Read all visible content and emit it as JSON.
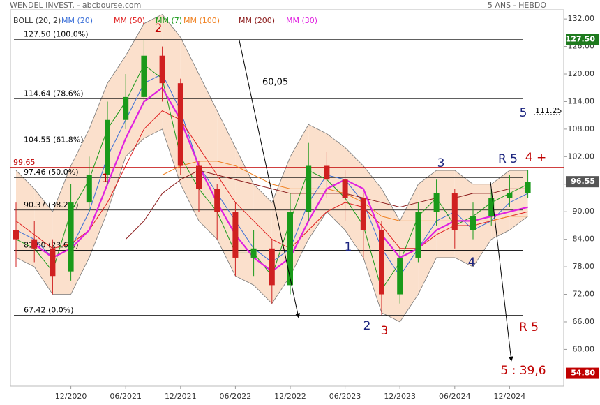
{
  "chart_data": {
    "type": "candlestick",
    "title": "WENDEL INVEST. - abcbourse.com",
    "subtitle": "5 ANS - HEBDO",
    "categories": [
      null,
      null,
      null,
      "12/2020",
      null,
      null,
      "06/2021",
      null,
      null,
      "12/2021",
      null,
      null,
      "06/2022",
      null,
      null,
      "12/2022",
      null,
      null,
      "06/2023",
      null,
      null,
      "12/2023",
      null,
      null,
      "06/2024",
      null,
      null,
      "12/2024",
      null
    ],
    "open": [
      86,
      84,
      82,
      77,
      92,
      98,
      110,
      115,
      124,
      118,
      100,
      95,
      90,
      80,
      82,
      74,
      90,
      100,
      97,
      93,
      86,
      72,
      80,
      90,
      94,
      86,
      89,
      93,
      94
    ],
    "high": [
      92,
      88,
      84,
      96,
      102,
      114,
      120,
      127.5,
      126,
      119,
      101,
      96,
      92,
      86,
      84,
      94,
      105,
      103,
      99,
      94,
      88,
      82,
      92,
      97,
      95,
      92,
      95,
      98,
      99
    ],
    "low": [
      78,
      79,
      72,
      75,
      90,
      96,
      108,
      113,
      114,
      98,
      90,
      84,
      76,
      76,
      70,
      72,
      88,
      93,
      88,
      80,
      67.5,
      70,
      79,
      87,
      82,
      84,
      87,
      91,
      93
    ],
    "close": [
      84,
      82,
      76,
      92,
      98,
      110,
      115,
      124,
      118,
      100,
      95,
      90,
      80,
      82,
      74,
      90,
      100,
      97,
      93,
      86,
      72,
      80,
      90,
      94,
      86,
      89,
      93,
      94,
      96.55
    ],
    "up_color": "#1a9a1a",
    "down_color": "#d02020",
    "bollinger": {
      "name": "BOLL (20, 2)",
      "color": "#333333",
      "fill": "#fbe0cc",
      "line": "#777777",
      "upper": [
        99,
        95,
        90,
        100,
        108,
        118,
        124,
        131,
        133,
        128,
        120,
        112,
        104,
        96,
        92,
        102,
        109,
        107,
        104,
        100,
        95,
        88,
        96,
        99,
        99,
        96,
        96,
        99,
        99
      ],
      "lower": [
        80,
        78,
        72,
        72,
        80,
        90,
        102,
        106,
        108,
        96,
        88,
        84,
        76,
        74,
        70,
        76,
        84,
        90,
        86,
        80,
        68,
        66,
        72,
        80,
        80,
        78,
        84,
        86,
        89
      ]
    },
    "series": [
      {
        "name": "MM (20)",
        "color": "#3a6fd8",
        "values": [
          86,
          84,
          80,
          82,
          90,
          102,
          110,
          118,
          120,
          112,
          100,
          94,
          88,
          82,
          79,
          82,
          92,
          98,
          97,
          92,
          82,
          76,
          82,
          88,
          90,
          86,
          88,
          92,
          94
        ]
      },
      {
        "name": "MM (50)",
        "color": "#e02020",
        "values": [
          88,
          85,
          82,
          83,
          86,
          92,
          100,
          108,
          112,
          110,
          104,
          98,
          92,
          88,
          84,
          82,
          86,
          90,
          92,
          91,
          87,
          82,
          82,
          85,
          87,
          87,
          88,
          89,
          90
        ]
      },
      {
        "name": "MM (7)",
        "color": "#1a9a1a",
        "values": [
          84,
          82,
          77,
          90,
          97,
          108,
          114,
          122,
          119,
          102,
          95,
          90,
          81,
          81,
          76,
          88,
          99,
          97,
          93,
          87,
          73,
          79,
          89,
          93,
          87,
          89,
          92,
          94,
          96
        ]
      },
      {
        "name": "MM (100)",
        "color": "#f08020",
        "values": [
          null,
          null,
          null,
          null,
          null,
          null,
          null,
          null,
          98,
          100,
          101,
          101,
          100,
          98,
          96,
          95,
          95,
          95,
          94,
          92,
          89,
          88,
          88,
          88,
          88,
          88,
          88,
          89,
          89
        ]
      },
      {
        "name": "MM (200)",
        "color": "#8b1a1a",
        "values": [
          null,
          null,
          null,
          null,
          null,
          null,
          84,
          88,
          94,
          97,
          99,
          98,
          97,
          96,
          95,
          94,
          94,
          94,
          94,
          93,
          92,
          91,
          92,
          93,
          93,
          94,
          94,
          95,
          95
        ]
      },
      {
        "name": "MM (30)",
        "color": "#e020e0",
        "values": [
          null,
          83,
          80,
          82,
          86,
          96,
          106,
          114,
          117,
          110,
          100,
          92,
          85,
          80,
          77,
          80,
          88,
          95,
          97,
          95,
          85,
          80,
          82,
          86,
          88,
          88,
          89,
          90,
          91
        ]
      }
    ],
    "ylim": [
      52,
      134
    ],
    "yticks": [
      {
        "value": 60,
        "label": "60.00"
      },
      {
        "value": 66,
        "label": "66.00"
      },
      {
        "value": 72,
        "label": "72.00"
      },
      {
        "value": 78,
        "label": "78.00"
      },
      {
        "value": 84,
        "label": "84.00"
      },
      {
        "value": 90,
        "label": "90.00"
      },
      {
        "value": 96,
        "label": "96.00"
      },
      {
        "value": 102,
        "label": "102.00"
      },
      {
        "value": 108,
        "label": "108.00"
      },
      {
        "value": 114,
        "label": "114.00"
      },
      {
        "value": 120,
        "label": "120.00"
      },
      {
        "value": 126,
        "label": "126.00"
      },
      {
        "value": 132,
        "label": "132.00"
      }
    ],
    "price_tags": [
      {
        "value": 127.5,
        "label": "127.50",
        "color": "#1e7a1e"
      },
      {
        "value": 96.55,
        "label": "96.55",
        "color": "#555555"
      },
      {
        "value": 54.8,
        "label": "54.80",
        "color": "#c00000"
      }
    ],
    "levels": [
      {
        "value": 127.5,
        "label": "127.50  (100.0%)"
      },
      {
        "value": 114.64,
        "label": "114.64  (78.6%)"
      },
      {
        "value": 104.55,
        "label": "104.55  (61.8%)"
      },
      {
        "value": 97.46,
        "label": "97.46  (50.0%)"
      },
      {
        "value": 90.37,
        "label": "90.37  (38.2%)"
      },
      {
        "value": 81.6,
        "label": "81.60  (23.6%)"
      },
      {
        "value": 67.42,
        "label": "67.42  (0.0%)"
      }
    ],
    "resistance": {
      "value": 99.65,
      "label": "99.65",
      "color": "#c00000"
    },
    "annotations": [
      "2",
      "1",
      "60,05",
      "5",
      "111.25",
      "R 5",
      "4 +",
      "3",
      "1",
      "2",
      "3",
      "4",
      "R 5",
      "5 : 39,6"
    ]
  }
}
